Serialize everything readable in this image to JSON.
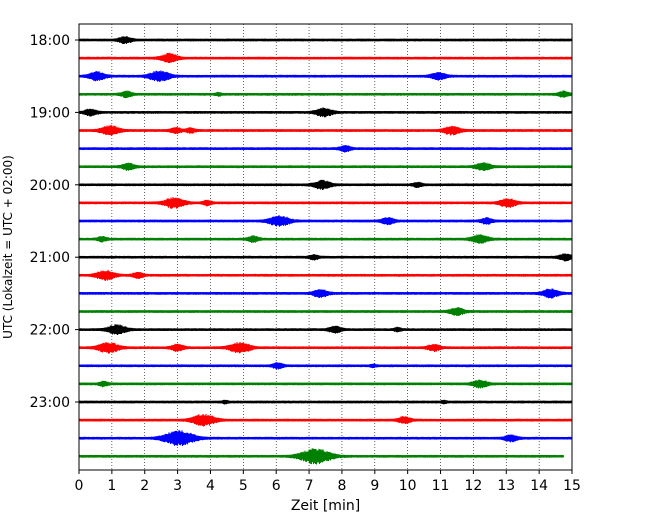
{
  "chart_data": {
    "type": "line",
    "title": "",
    "xlabel": "Zeit  [min]",
    "ylabel": "UTC (Lokalzeit = UTC + 02:00)",
    "xlim": [
      0,
      15
    ],
    "x_ticks": [
      "0",
      "1",
      "2",
      "3",
      "4",
      "5",
      "6",
      "7",
      "8",
      "9",
      "10",
      "11",
      "12",
      "13",
      "14",
      "15"
    ],
    "y_ticks": [
      "18:00",
      "19:00",
      "20:00",
      "21:00",
      "22:00",
      "23:00"
    ],
    "grid": "vertical dotted lines at each minute",
    "colors": [
      "#000000",
      "#ff0000",
      "#0000ff",
      "#008000"
    ],
    "series": [
      {
        "start": "18:00",
        "color": "#000000",
        "bursts": [
          [
            1.4,
            0.35
          ]
        ]
      },
      {
        "start": "18:15",
        "color": "#ff0000",
        "bursts": [
          [
            2.75,
            0.45
          ]
        ]
      },
      {
        "start": "18:30",
        "color": "#0000ff",
        "bursts": [
          [
            0.55,
            0.45
          ],
          [
            2.45,
            0.55
          ],
          [
            10.95,
            0.4
          ]
        ]
      },
      {
        "start": "18:45",
        "color": "#008000",
        "bursts": [
          [
            1.45,
            0.3
          ],
          [
            4.25,
            0.15
          ],
          [
            14.75,
            0.3
          ]
        ]
      },
      {
        "start": "19:00",
        "color": "#000000",
        "bursts": [
          [
            0.35,
            0.35
          ],
          [
            7.45,
            0.45
          ]
        ]
      },
      {
        "start": "19:15",
        "color": "#ff0000",
        "bursts": [
          [
            0.95,
            0.5
          ],
          [
            2.95,
            0.3
          ],
          [
            3.4,
            0.25
          ],
          [
            11.35,
            0.45
          ]
        ]
      },
      {
        "start": "19:30",
        "color": "#0000ff",
        "bursts": [
          [
            8.1,
            0.3
          ]
        ]
      },
      {
        "start": "19:45",
        "color": "#008000",
        "bursts": [
          [
            1.5,
            0.35
          ],
          [
            12.3,
            0.4
          ]
        ]
      },
      {
        "start": "20:00",
        "color": "#000000",
        "bursts": [
          [
            7.4,
            0.45
          ],
          [
            10.3,
            0.25
          ]
        ]
      },
      {
        "start": "20:15",
        "color": "#ff0000",
        "bursts": [
          [
            2.9,
            0.55
          ],
          [
            3.9,
            0.25
          ],
          [
            13.05,
            0.45
          ]
        ]
      },
      {
        "start": "20:30",
        "color": "#0000ff",
        "bursts": [
          [
            6.1,
            0.55
          ],
          [
            9.4,
            0.35
          ],
          [
            12.4,
            0.3
          ]
        ]
      },
      {
        "start": "20:45",
        "color": "#008000",
        "bursts": [
          [
            0.7,
            0.25
          ],
          [
            5.3,
            0.3
          ],
          [
            12.2,
            0.45
          ]
        ]
      },
      {
        "start": "21:00",
        "color": "#000000",
        "bursts": [
          [
            7.15,
            0.25
          ],
          [
            14.8,
            0.35
          ]
        ]
      },
      {
        "start": "21:15",
        "color": "#ff0000",
        "bursts": [
          [
            0.8,
            0.5
          ],
          [
            1.8,
            0.3
          ]
        ]
      },
      {
        "start": "21:30",
        "color": "#0000ff",
        "bursts": [
          [
            7.35,
            0.4
          ],
          [
            14.35,
            0.45
          ]
        ]
      },
      {
        "start": "21:45",
        "color": "#008000",
        "bursts": [
          [
            11.5,
            0.4
          ]
        ]
      },
      {
        "start": "22:00",
        "color": "#000000",
        "bursts": [
          [
            1.15,
            0.5
          ],
          [
            7.8,
            0.35
          ],
          [
            9.7,
            0.2
          ]
        ]
      },
      {
        "start": "22:15",
        "color": "#ff0000",
        "bursts": [
          [
            0.9,
            0.55
          ],
          [
            3.0,
            0.35
          ],
          [
            4.9,
            0.55
          ],
          [
            10.8,
            0.35
          ]
        ]
      },
      {
        "start": "22:30",
        "color": "#0000ff",
        "bursts": [
          [
            6.05,
            0.3
          ],
          [
            8.95,
            0.15
          ]
        ]
      },
      {
        "start": "22:45",
        "color": "#008000",
        "bursts": [
          [
            0.75,
            0.25
          ],
          [
            12.2,
            0.4
          ]
        ]
      },
      {
        "start": "23:00",
        "color": "#000000",
        "bursts": [
          [
            4.45,
            0.15
          ],
          [
            11.1,
            0.15
          ]
        ]
      },
      {
        "start": "23:15",
        "color": "#ff0000",
        "bursts": [
          [
            3.8,
            0.6
          ],
          [
            9.9,
            0.35
          ]
        ]
      },
      {
        "start": "23:30",
        "color": "#0000ff",
        "bursts": [
          [
            3.05,
            0.8
          ],
          [
            13.15,
            0.35
          ]
        ]
      },
      {
        "start": "23:45",
        "color": "#008000",
        "bursts": [
          [
            7.2,
            0.8
          ]
        ],
        "end_x": 14.75
      }
    ]
  }
}
